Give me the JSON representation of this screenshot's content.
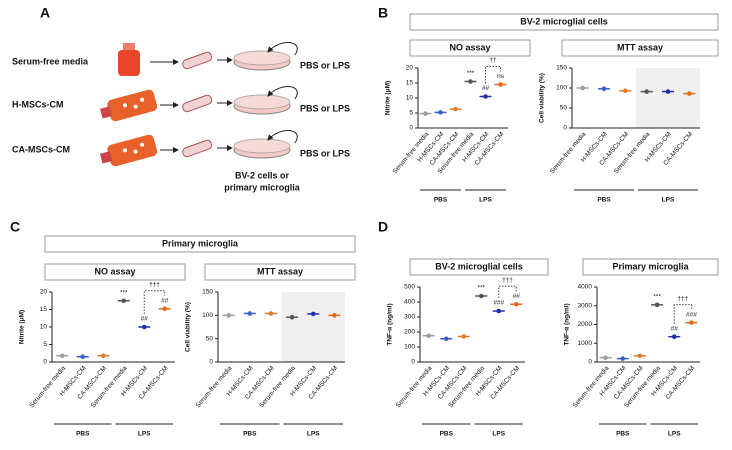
{
  "panel_labels": [
    "A",
    "B",
    "C",
    "D"
  ],
  "diagram": {
    "conditions": [
      "Serum-free media",
      "H-MSCs-CM",
      "CA-MSCs-CM"
    ],
    "treatments": [
      "PBS or LPS",
      "PBS or LPS",
      "PBS or LPS"
    ],
    "cells": [
      "BV-2 cells or",
      "primary microglia"
    ]
  },
  "group_titles": [
    "BV-2 microglial cells",
    "Primary microglia"
  ],
  "chart_data": [
    {
      "type": "dot",
      "title": "NO assay",
      "y_label": "Nitrite (μM)",
      "categories": [
        "Serum-free media",
        "H-MSCs-CM",
        "CA-MSCs-CM",
        "Serum-free media",
        "H-MSCs-CM",
        "CA-MSCs-CM"
      ],
      "colors": [
        "#9e9e9e",
        "#3a5fc8",
        "#e07b2a",
        "#555555",
        "#1f2fa8",
        "#e06a1a"
      ],
      "values": [
        4.8,
        5.2,
        6.3,
        15.5,
        10.5,
        14.5
      ],
      "ylim": [
        0,
        20
      ],
      "yticks": [
        0,
        5,
        10,
        15,
        20
      ],
      "groups": [
        "PBS",
        "LPS"
      ],
      "annotations": [
        {
          "category": 3,
          "text": "***"
        },
        {
          "category": 4,
          "text": "##"
        },
        {
          "category": 5,
          "text": "ns"
        }
      ],
      "bracket": {
        "from": 4,
        "to": 5,
        "text": "††"
      }
    },
    {
      "type": "dot",
      "title": "MTT assay",
      "y_label": "Cell viability (%)",
      "categories": [
        "Serum-free media",
        "H-MSCs-CM",
        "CA-MSCs-CM",
        "Serum-free media",
        "H-MSCs-CM",
        "CA-MSCs-CM"
      ],
      "colors": [
        "#9e9e9e",
        "#3a5fc8",
        "#e07b2a",
        "#555555",
        "#1f2fa8",
        "#e06a1a"
      ],
      "values": [
        100,
        98,
        93,
        91,
        91,
        86
      ],
      "ylim": [
        0,
        150
      ],
      "yticks": [
        0,
        50,
        100,
        150
      ],
      "groups": [
        "PBS",
        "LPS"
      ],
      "shaded_group": 1
    },
    {
      "type": "dot",
      "title": "NO assay",
      "y_label": "Nitrite (μM)",
      "categories": [
        "Serum-free media",
        "H-MSCs-CM",
        "CA-MSCs-CM",
        "Serum-free media",
        "H-MSCs-CM",
        "CA-MSCs-CM"
      ],
      "colors": [
        "#9e9e9e",
        "#3a5fc8",
        "#e07b2a",
        "#555555",
        "#1f2fa8",
        "#e06a1a"
      ],
      "values": [
        1.8,
        1.5,
        1.8,
        17.5,
        10,
        15.2
      ],
      "ylim": [
        0,
        20
      ],
      "yticks": [
        0,
        5,
        10,
        15,
        20
      ],
      "groups": [
        "PBS",
        "LPS"
      ],
      "annotations": [
        {
          "category": 3,
          "text": "***"
        },
        {
          "category": 4,
          "text": "##"
        },
        {
          "category": 5,
          "text": "##"
        }
      ],
      "bracket": {
        "from": 4,
        "to": 5,
        "text": "†††"
      }
    },
    {
      "type": "dot",
      "title": "MTT assay",
      "y_label": "Cell viability (%)",
      "categories": [
        "Serum-free media",
        "H-MSCs-CM",
        "CA-MSCs-CM",
        "Serum-free media",
        "H-MSCs-CM",
        "CA-MSCs-CM"
      ],
      "colors": [
        "#9e9e9e",
        "#3a5fc8",
        "#e07b2a",
        "#555555",
        "#1f2fa8",
        "#e06a1a"
      ],
      "values": [
        100,
        104,
        104,
        96,
        103,
        100
      ],
      "ylim": [
        0,
        150
      ],
      "yticks": [
        0,
        50,
        100,
        150
      ],
      "groups": [
        "PBS",
        "LPS"
      ],
      "shaded_group": 1
    },
    {
      "type": "dot",
      "title": "BV-2 microglial cells",
      "y_label": "TNF-α (ng/ml)",
      "categories": [
        "Serum-free media",
        "H-MSCs-CM",
        "CA-MSCs-CM",
        "Serum-free media",
        "H-MSCs-CM",
        "CA-MSCs-CM"
      ],
      "colors": [
        "#9e9e9e",
        "#3a5fc8",
        "#e07b2a",
        "#555555",
        "#1f2fa8",
        "#e06a1a"
      ],
      "values": [
        175,
        155,
        170,
        440,
        340,
        385
      ],
      "ylim": [
        0,
        500
      ],
      "yticks": [
        0,
        100,
        200,
        300,
        400,
        500
      ],
      "groups": [
        "PBS",
        "LPS"
      ],
      "annotations": [
        {
          "category": 3,
          "text": "***"
        },
        {
          "category": 4,
          "text": "###"
        },
        {
          "category": 5,
          "text": "##"
        }
      ],
      "bracket": {
        "from": 4,
        "to": 5,
        "text": "†††"
      }
    },
    {
      "type": "dot",
      "title": "Primary microglia",
      "y_label": "TNF-α (ng/ml)",
      "categories": [
        "Serum-free media",
        "H-MSCs-CM",
        "CA-MSCs-CM",
        "Serum-free media",
        "H-MSCs-CM",
        "CA-MSCs-CM"
      ],
      "colors": [
        "#9e9e9e",
        "#3a5fc8",
        "#e07b2a",
        "#555555",
        "#1f2fa8",
        "#e06a1a"
      ],
      "values": [
        230,
        180,
        330,
        3050,
        1350,
        2100
      ],
      "ylim": [
        0,
        4000
      ],
      "yticks": [
        0,
        1000,
        2000,
        3000,
        4000
      ],
      "groups": [
        "PBS",
        "LPS"
      ],
      "annotations": [
        {
          "category": 3,
          "text": "***"
        },
        {
          "category": 4,
          "text": "##"
        },
        {
          "category": 5,
          "text": "###"
        }
      ],
      "bracket": {
        "from": 4,
        "to": 5,
        "text": "†††"
      }
    }
  ]
}
